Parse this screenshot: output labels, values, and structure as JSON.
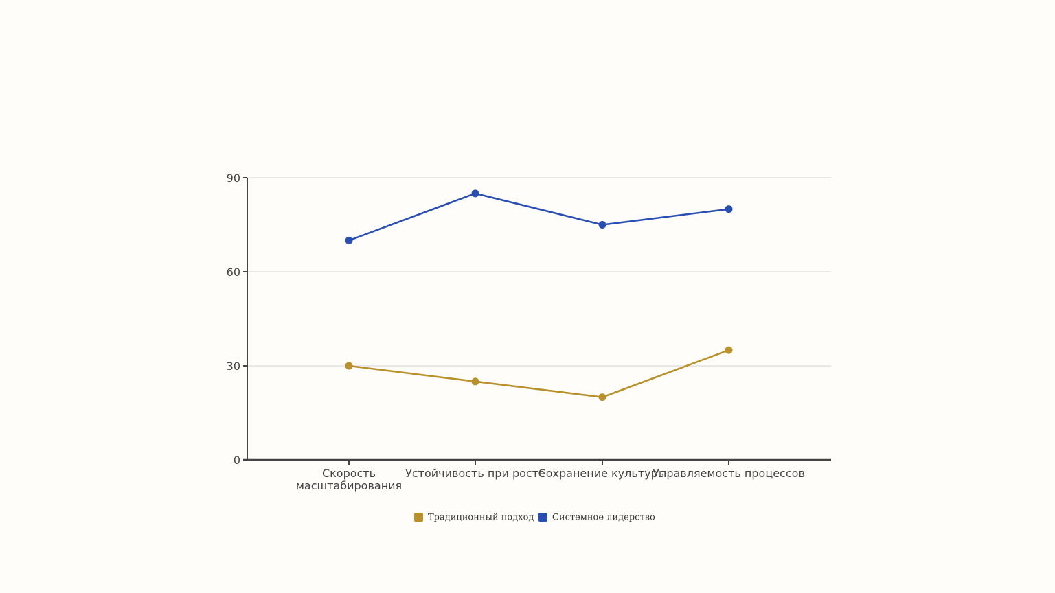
{
  "chart_data": {
    "type": "line",
    "categories": [
      "Скорость масштабирования",
      "Устойчивость при росте",
      "Сохранение культуры",
      "Управляемость процессов"
    ],
    "category_lines": [
      [
        "Скорость",
        "масштабирования"
      ],
      [
        "Устойчивость при росте"
      ],
      [
        "Сохранение культуры"
      ],
      [
        "Управляемость процессов"
      ]
    ],
    "series": [
      {
        "name": "Традиционный подход",
        "values": [
          30,
          25,
          20,
          35
        ],
        "color": "#b8912a"
      },
      {
        "name": "Системное лидерство",
        "values": [
          70,
          85,
          75,
          80
        ],
        "color": "#2a4fb4"
      }
    ],
    "y_ticks": [
      0,
      30,
      60,
      90
    ],
    "ylim": [
      0,
      90
    ],
    "grid": true,
    "legend_position": "bottom-center",
    "colors": {
      "background": "#fefdf9",
      "axis": "#444444",
      "grid": "#dddddd"
    }
  }
}
